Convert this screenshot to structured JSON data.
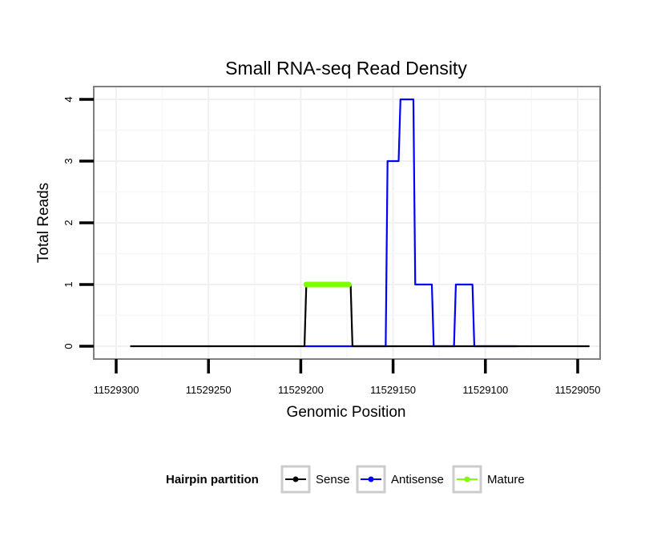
{
  "chart_data": {
    "type": "line",
    "title": "Small RNA-seq Read Density",
    "xlabel": "Genomic Position",
    "ylabel": "Total Reads",
    "x_reversed": true,
    "xlim": [
      11529300,
      11529050
    ],
    "ylim": [
      0,
      4
    ],
    "x_ticks": [
      11529300,
      11529250,
      11529200,
      11529150,
      11529100,
      11529050
    ],
    "x_tick_labels": [
      "11529300",
      "11529250",
      "11529200",
      "11529150",
      "11529100",
      "11529050"
    ],
    "y_ticks": [
      0,
      1,
      2,
      3,
      4
    ],
    "y_tick_labels": [
      "0",
      "1",
      "2",
      "3",
      "4"
    ],
    "grid": true,
    "legend": {
      "title": "Hairpin partition",
      "position": "bottom",
      "entries": [
        {
          "label": "Sense",
          "color": "#000000"
        },
        {
          "label": "Antisense",
          "color": "#0000ff"
        },
        {
          "label": "Mature",
          "color": "#7fff00"
        }
      ]
    },
    "series": [
      {
        "name": "Sense",
        "color": "#000000",
        "x": [
          11529292,
          11529198,
          11529197,
          11529173,
          11529172,
          11529044
        ],
        "y": [
          0,
          0,
          1,
          1,
          0,
          0
        ]
      },
      {
        "name": "Antisense",
        "color": "#0000ff",
        "x": [
          11529198,
          11529154,
          11529153,
          11529147,
          11529146,
          11529139,
          11529138,
          11529129,
          11529128,
          11529117,
          11529116,
          11529107,
          11529106,
          11529093,
          11529092,
          11529083
        ],
        "y": [
          0,
          0,
          3,
          3,
          4,
          4,
          1,
          1,
          0,
          0,
          1,
          1,
          0,
          0,
          0,
          0
        ]
      },
      {
        "name": "Mature",
        "color": "#7fff00",
        "x": [
          11529197,
          11529174
        ],
        "y": [
          1,
          1
        ]
      }
    ]
  }
}
